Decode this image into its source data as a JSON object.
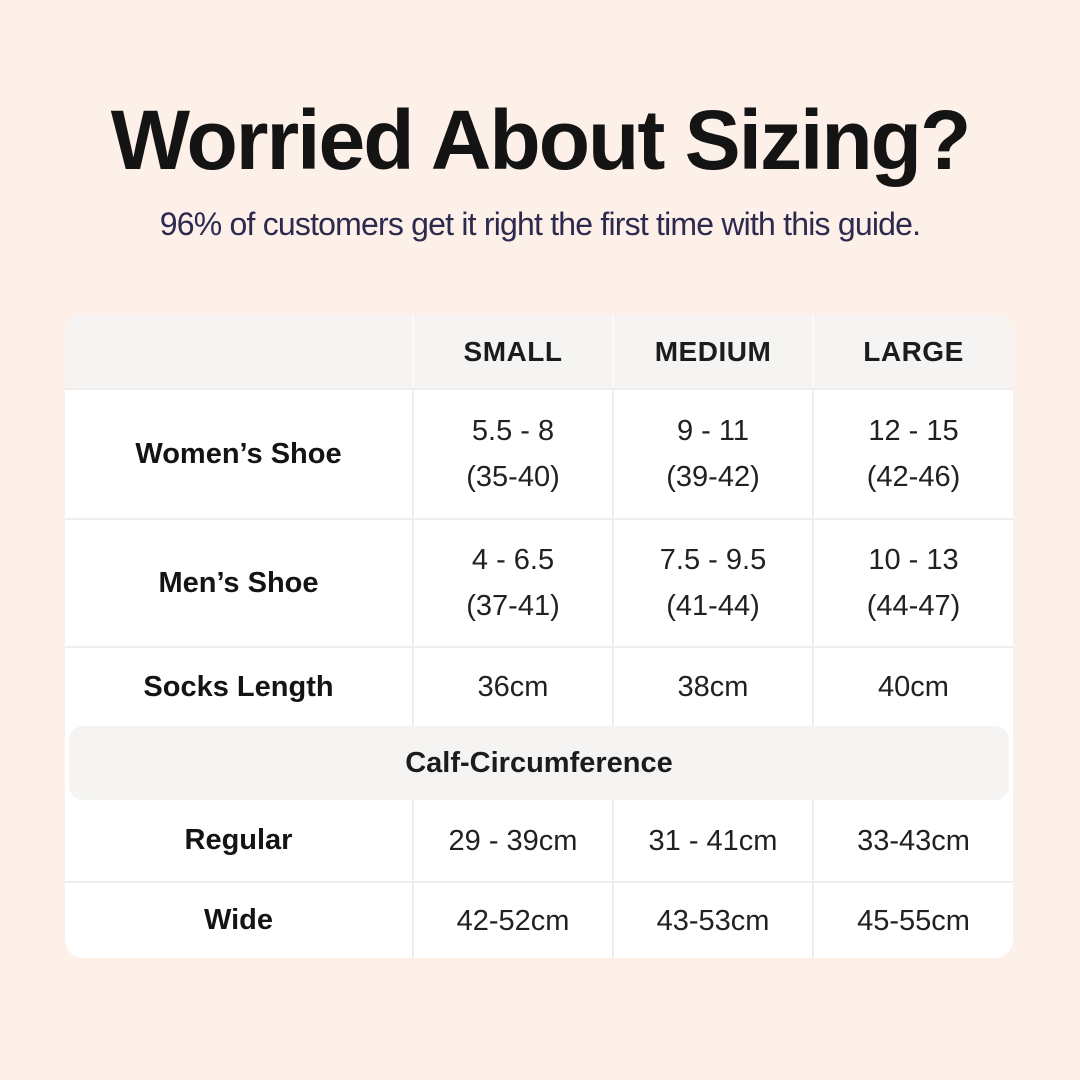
{
  "colors": {
    "page_background": "#fcf0e8",
    "title_text": "#141414",
    "subtitle_text": "#2d2a4f",
    "table_background": "#ffffff",
    "header_band_gray": "#f5f4f2",
    "divider_gray": "#efeeec",
    "cell_text": "#212121"
  },
  "chart_data": {
    "type": "table",
    "title": "Worried About Sizing?",
    "subtitle": "96% of customers get it right the first time with this guide.",
    "columns": [
      "SMALL",
      "MEDIUM",
      "LARGE"
    ],
    "rows": [
      {
        "label": "Women’s Shoe",
        "cells": [
          {
            "line1": "5.5 - 8",
            "line2": "(35-40)"
          },
          {
            "line1": "9 - 11",
            "line2": "(39-42)"
          },
          {
            "line1": "12 - 15",
            "line2": "(42-46)"
          }
        ]
      },
      {
        "label": "Men’s Shoe",
        "cells": [
          {
            "line1": "4 - 6.5",
            "line2": "(37-41)"
          },
          {
            "line1": "7.5 - 9.5",
            "line2": "(41-44)"
          },
          {
            "line1": "10 - 13",
            "line2": "(44-47)"
          }
        ]
      },
      {
        "label": "Socks Length",
        "cells": [
          {
            "line1": "36cm"
          },
          {
            "line1": "38cm"
          },
          {
            "line1": "40cm"
          }
        ]
      }
    ],
    "section_header": "Calf-Circumference",
    "section_rows": [
      {
        "label": "Regular",
        "cells": [
          {
            "line1": "29 - 39cm"
          },
          {
            "line1": "31 - 41cm"
          },
          {
            "line1": "33-43cm"
          }
        ]
      },
      {
        "label": "Wide",
        "cells": [
          {
            "line1": "42-52cm"
          },
          {
            "line1": "43-53cm"
          },
          {
            "line1": "45-55cm"
          }
        ]
      }
    ]
  }
}
